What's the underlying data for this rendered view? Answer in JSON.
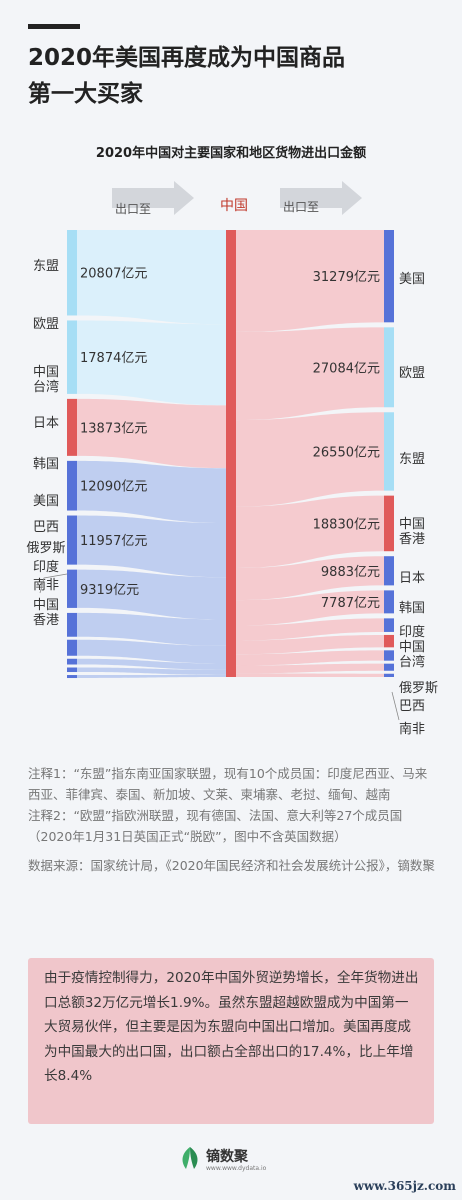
{
  "page": {
    "title_line1": "2020年美国再度成为中国商品",
    "title_line2": "第一大买家"
  },
  "chart_data": {
    "type": "sankey",
    "title": "2020年中国对主要国家和地区货物进出口金额",
    "header_left": "出口至",
    "header_center": "中国",
    "header_right": "出口至",
    "center_node": "中国",
    "unit": "亿元",
    "colors": {
      "import_blue_flow": "#bccbef",
      "import_cyan_flow": "#d9effb",
      "export_flow": "#f4c8cc",
      "cyan_node": "#a6def5",
      "blue_node": "#5672d8",
      "red_node": "#e05a5a",
      "center_node": "#e05a5a"
    },
    "imports": [
      {
        "name": "东盟",
        "value": 20807,
        "label": "20807亿元"
      },
      {
        "name": "欧盟",
        "value": 17874,
        "label": "17874亿元"
      },
      {
        "name": "中国台湾",
        "value": 13873,
        "label": "13873亿元"
      },
      {
        "name": "日本",
        "value": 12090,
        "label": "12090亿元"
      },
      {
        "name": "韩国",
        "value": 11957,
        "label": "11957亿元"
      },
      {
        "name": "美国",
        "value": 9319,
        "label": "9319亿元"
      },
      {
        "name": "巴西",
        "value": 5800,
        "label": ""
      },
      {
        "name": "俄罗斯",
        "value": 3900,
        "label": ""
      },
      {
        "name": "印度",
        "value": 1400,
        "label": ""
      },
      {
        "name": "南非",
        "value": 1100,
        "label": ""
      },
      {
        "name": "中国香港",
        "value": 480,
        "label": ""
      }
    ],
    "exports": [
      {
        "name": "美国",
        "value": 31279,
        "label": "31279亿元"
      },
      {
        "name": "欧盟",
        "value": 27084,
        "label": "27084亿元"
      },
      {
        "name": "东盟",
        "value": 26550,
        "label": "26550亿元"
      },
      {
        "name": "中国香港",
        "value": 18830,
        "label": "18830亿元"
      },
      {
        "name": "日本",
        "value": 9883,
        "label": "9883亿元"
      },
      {
        "name": "韩国",
        "value": 7787,
        "label": "7787亿元"
      },
      {
        "name": "印度",
        "value": 4600,
        "label": ""
      },
      {
        "name": "中国台湾",
        "value": 4200,
        "label": ""
      },
      {
        "name": "俄罗斯",
        "value": 3500,
        "label": ""
      },
      {
        "name": "巴西",
        "value": 2400,
        "label": ""
      },
      {
        "name": "南非",
        "value": 1100,
        "label": ""
      }
    ]
  },
  "notes": {
    "note1": "注释1：“东盟”指东南亚国家联盟，现有10个成员国：印度尼西亚、马来西亚、菲律宾、泰国、新加坡、文莱、柬埔寨、老挝、缅甸、越南",
    "note2": "注释2：“欧盟”指欧洲联盟，现有德国、法国、意大利等27个成员国（2020年1月31日英国正式“脱欧”，图中不含英国数据）",
    "source": "数据来源：国家统计局，《2020年国民经济和社会发展统计公报》，镝数聚"
  },
  "summary": "由于疫情控制得力，2020年中国外贸逆势增长，全年货物进出口总额32万亿元增长1.9%。虽然东盟超越欧盟成为中国第一大贸易伙伴，但主要是因为东盟向中国出口增加。美国再度成为中国最大的出口国，出口额占全部出口的17.4%，比上年增长8.4%",
  "footer": {
    "logo_name": "镝数聚",
    "logo_url": "www.www.dydata.io",
    "watermark": "www.365jz.com"
  }
}
